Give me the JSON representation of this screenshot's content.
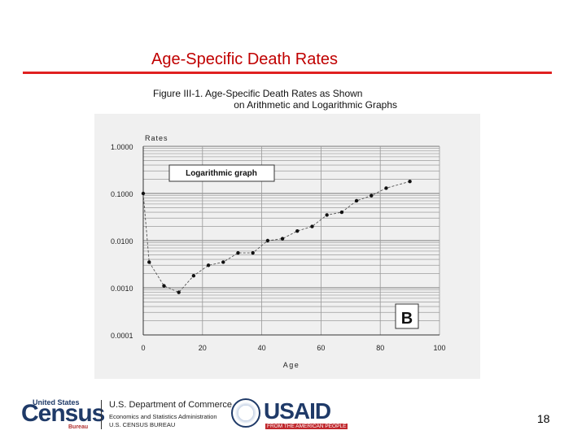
{
  "slide": {
    "title": "Age-Specific Death Rates",
    "page_number": "18"
  },
  "figure": {
    "caption_line1": "Figure III-1. Age-Specific Death Rates as Shown",
    "caption_line2": "on Arithmetic and Logarithmic Graphs"
  },
  "footer": {
    "census_small": "United States",
    "census_big": "Census",
    "census_bureau": "Bureau",
    "doc_line1": "U.S. Department of Commerce",
    "doc_line2": "Economics and Statistics Administration",
    "doc_line3": "U.S. CENSUS BUREAU",
    "usaid_word": "USAID",
    "usaid_sub": "FROM THE AMERICAN PEOPLE"
  },
  "colors": {
    "title": "#c00000",
    "rule": "#e02020",
    "census_blue": "#1f3a68"
  },
  "chart_data": {
    "type": "line",
    "y_scale": "log",
    "ylabel": "Rates",
    "xlabel": "Age",
    "xlim": [
      0,
      100
    ],
    "ylim": [
      0.0001,
      1.0
    ],
    "x_ticks": [
      0,
      20,
      40,
      60,
      80,
      100
    ],
    "x_tick_labels": [
      "0",
      "20",
      "40",
      "60",
      "80",
      "100"
    ],
    "y_ticks": [
      1.0,
      0.1,
      0.01,
      0.001,
      0.0001
    ],
    "y_tick_labels": [
      "1.0000",
      "0.1000",
      "0.0100",
      "0.0010",
      "0.0001"
    ],
    "annotation": "Logarithmic graph",
    "panel_label": "B",
    "series": [
      {
        "x": [
          0,
          2,
          7,
          12,
          17,
          22,
          27,
          32,
          37,
          42,
          47,
          52,
          57,
          62,
          67,
          72,
          77,
          82,
          90
        ],
        "values": [
          0.1,
          0.0035,
          0.0011,
          0.0008,
          0.0018,
          0.003,
          0.0035,
          0.0055,
          0.0055,
          0.01,
          0.011,
          0.016,
          0.02,
          0.035,
          0.04,
          0.07,
          0.09,
          0.13,
          0.18
        ]
      }
    ]
  }
}
